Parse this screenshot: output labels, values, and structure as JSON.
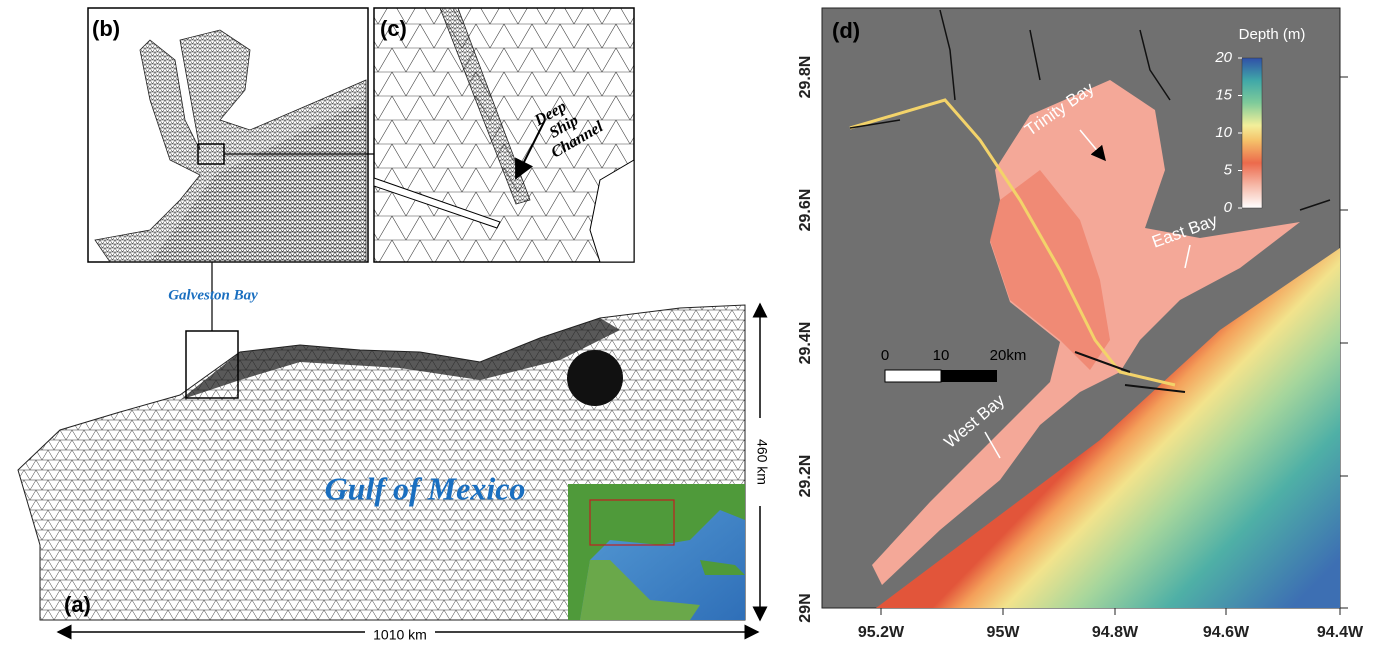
{
  "panel_a": {
    "label": "(a)",
    "region_label": "Galveston Bay",
    "sea_label": "Gulf of Mexico",
    "height_label": "460 km",
    "width_label": "1010 km"
  },
  "panel_b": {
    "label": "(b)"
  },
  "panel_c": {
    "label": "(c)",
    "annotation": [
      "Deep",
      "Ship",
      "Channel"
    ]
  },
  "panel_d": {
    "label": "(d)",
    "colorbar": {
      "title": "Depth (m)",
      "range": [
        0,
        20
      ],
      "ticks": [
        20,
        15,
        10,
        5,
        0
      ]
    },
    "places": [
      "Trinity Bay",
      "East Bay",
      "West Bay"
    ],
    "scale_bar": [
      "0",
      "10",
      "20km"
    ],
    "lat_labels": [
      "29.8N",
      "29.6N",
      "29.4N",
      "29.2N",
      "29N"
    ],
    "lon_labels": [
      "95.2W",
      "95W",
      "94.8W",
      "94.6W",
      "94.4W"
    ]
  }
}
